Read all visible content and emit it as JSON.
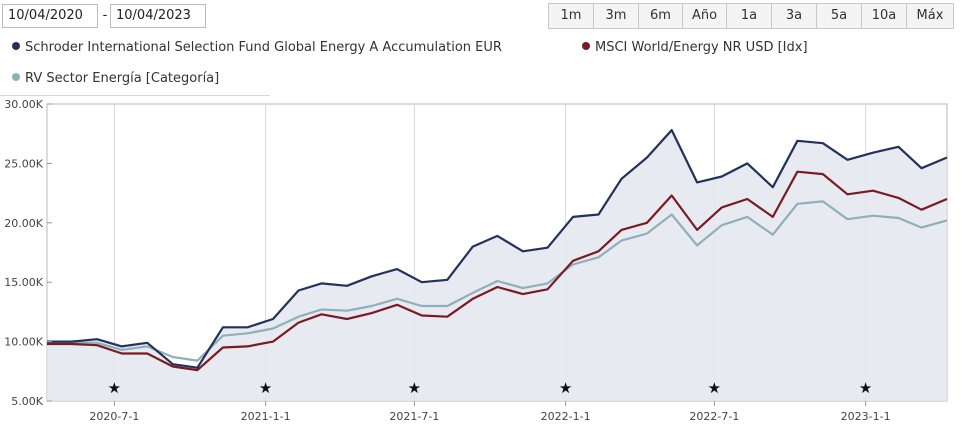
{
  "date_range": {
    "start": "10/04/2020",
    "separator": "-",
    "end": "10/04/2023"
  },
  "range_buttons": [
    {
      "label": "1m",
      "active": false
    },
    {
      "label": "3m",
      "active": false
    },
    {
      "label": "6m",
      "active": false
    },
    {
      "label": "Año",
      "active": false
    },
    {
      "label": "1a",
      "active": false
    },
    {
      "label": "3a",
      "active": true
    },
    {
      "label": "5a",
      "active": false
    },
    {
      "label": "10a",
      "active": false
    },
    {
      "label": "Máx",
      "active": false
    }
  ],
  "chart_data": {
    "type": "line",
    "series": [
      {
        "name": "Schroder International Selection Fund Global Energy A Accumulation EUR",
        "color": "#22325c",
        "x": [
          "2020-04-10",
          "2020-05-10",
          "2020-06-10",
          "2020-07-10",
          "2020-08-10",
          "2020-09-10",
          "2020-10-10",
          "2020-11-10",
          "2020-12-10",
          "2021-01-10",
          "2021-02-10",
          "2021-03-10",
          "2021-04-10",
          "2021-05-10",
          "2021-06-10",
          "2021-07-10",
          "2021-08-10",
          "2021-09-10",
          "2021-10-10",
          "2021-11-10",
          "2021-12-10",
          "2022-01-10",
          "2022-02-10",
          "2022-03-10",
          "2022-04-10",
          "2022-05-10",
          "2022-06-10",
          "2022-07-10",
          "2022-08-10",
          "2022-09-10",
          "2022-10-10",
          "2022-11-10",
          "2022-12-10",
          "2023-01-10",
          "2023-02-10",
          "2023-03-10",
          "2023-04-10"
        ],
        "values": [
          10000,
          10000,
          10200,
          9600,
          9900,
          8100,
          7800,
          11200,
          11200,
          11900,
          14300,
          14900,
          14700,
          15500,
          16100,
          15000,
          15200,
          18000,
          18900,
          17600,
          17900,
          20500,
          20700,
          23700,
          25500,
          27800,
          23400,
          23900,
          25000,
          23000,
          26900,
          26700,
          25300,
          25900,
          26400,
          24600,
          25500
        ]
      },
      {
        "name": "MSCI World/Energy NR USD [Idx]",
        "color": "#7a1a22",
        "x": [
          "2020-04-10",
          "2020-05-10",
          "2020-06-10",
          "2020-07-10",
          "2020-08-10",
          "2020-09-10",
          "2020-10-10",
          "2020-11-10",
          "2020-12-10",
          "2021-01-10",
          "2021-02-10",
          "2021-03-10",
          "2021-04-10",
          "2021-05-10",
          "2021-06-10",
          "2021-07-10",
          "2021-08-10",
          "2021-09-10",
          "2021-10-10",
          "2021-11-10",
          "2021-12-10",
          "2022-01-10",
          "2022-02-10",
          "2022-03-10",
          "2022-04-10",
          "2022-05-10",
          "2022-06-10",
          "2022-07-10",
          "2022-08-10",
          "2022-09-10",
          "2022-10-10",
          "2022-11-10",
          "2022-12-10",
          "2023-01-10",
          "2023-02-10",
          "2023-03-10",
          "2023-04-10"
        ],
        "values": [
          9800,
          9800,
          9700,
          9000,
          9000,
          7900,
          7600,
          9500,
          9600,
          10000,
          11600,
          12300,
          11900,
          12400,
          13100,
          12200,
          12100,
          13600,
          14600,
          14000,
          14400,
          16800,
          17600,
          19400,
          20000,
          22300,
          19400,
          21300,
          22000,
          20500,
          24300,
          24100,
          22400,
          22700,
          22100,
          21100,
          22000
        ]
      },
      {
        "name": "RV Sector Energía [Categoría]",
        "color": "#8fb0b8",
        "x": [
          "2020-04-10",
          "2020-05-10",
          "2020-06-10",
          "2020-07-10",
          "2020-08-10",
          "2020-09-10",
          "2020-10-10",
          "2020-11-10",
          "2020-12-10",
          "2021-01-10",
          "2021-02-10",
          "2021-03-10",
          "2021-04-10",
          "2021-05-10",
          "2021-06-10",
          "2021-07-10",
          "2021-08-10",
          "2021-09-10",
          "2021-10-10",
          "2021-11-10",
          "2021-12-10",
          "2022-01-10",
          "2022-02-10",
          "2022-03-10",
          "2022-04-10",
          "2022-05-10",
          "2022-06-10",
          "2022-07-10",
          "2022-08-10",
          "2022-09-10",
          "2022-10-10",
          "2022-11-10",
          "2022-12-10",
          "2023-01-10",
          "2023-02-10",
          "2023-03-10",
          "2023-04-10"
        ],
        "values": [
          9900,
          9900,
          9900,
          9300,
          9600,
          8700,
          8400,
          10500,
          10700,
          11100,
          12100,
          12700,
          12600,
          13000,
          13600,
          13000,
          13000,
          14100,
          15100,
          14500,
          14900,
          16500,
          17100,
          18500,
          19100,
          20700,
          18100,
          19800,
          20500,
          19000,
          21600,
          21800,
          20300,
          20600,
          20400,
          19600,
          20200
        ]
      }
    ],
    "x_ticks": [
      "2020-7-1",
      "2021-1-1",
      "2021-7-1",
      "2022-1-1",
      "2022-7-1",
      "2023-1-1"
    ],
    "y_ticks": [
      "5.00K",
      "10.00K",
      "15.00K",
      "20.00K",
      "25.00K",
      "30.00K"
    ],
    "ylim": [
      5000,
      30000
    ],
    "xlim": [
      "2020-04-10",
      "2023-04-10"
    ],
    "event_markers": [
      "2020-07-01",
      "2021-01-01",
      "2021-07-01",
      "2022-01-01",
      "2022-07-01",
      "2023-01-01"
    ],
    "shaded_series": "Schroder International Selection Fund Global Energy A Accumulation EUR",
    "grid": "vertical",
    "legend_position": "top"
  }
}
